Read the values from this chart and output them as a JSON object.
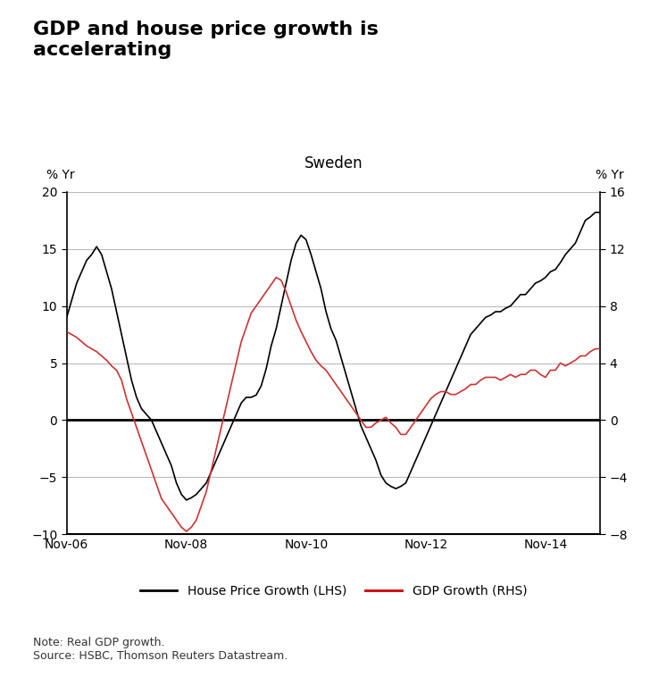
{
  "title": "GDP and house price growth is\naccelerating",
  "subtitle": "Sweden",
  "ylabel_left": "% Yr",
  "ylabel_right": "% Yr",
  "xlabel_ticks": [
    "Nov-06",
    "Nov-08",
    "Nov-10",
    "Nov-12",
    "Nov-14"
  ],
  "ylim_left": [
    -10,
    20
  ],
  "ylim_right": [
    -8,
    16
  ],
  "yticks_left": [
    -10,
    -5,
    0,
    5,
    10,
    15,
    20
  ],
  "yticks_right": [
    -8,
    -4,
    0,
    4,
    8,
    12,
    16
  ],
  "note": "Note: Real GDP growth.\nSource: HSBC, Thomson Reuters Datastream.",
  "legend_items": [
    "House Price Growth (LHS)",
    "GDP Growth (RHS)"
  ],
  "legend_colors": [
    "#000000",
    "#cc0000"
  ],
  "house_price": {
    "x": [
      0,
      1,
      2,
      3,
      4,
      5,
      6,
      7,
      8,
      9,
      10,
      11,
      12,
      13,
      14,
      15,
      16,
      17,
      18,
      19,
      20,
      21,
      22,
      23,
      24,
      25,
      26,
      27,
      28,
      29,
      30,
      31,
      32,
      33,
      34,
      35,
      36,
      37,
      38,
      39,
      40,
      41,
      42,
      43,
      44,
      45,
      46,
      47,
      48,
      49,
      50,
      51,
      52,
      53,
      54,
      55,
      56,
      57,
      58,
      59,
      60,
      61,
      62,
      63,
      64,
      65,
      66,
      67,
      68,
      69,
      70,
      71,
      72,
      73,
      74,
      75,
      76,
      77,
      78,
      79,
      80,
      81,
      82,
      83,
      84,
      85,
      86,
      87,
      88,
      89,
      90,
      91,
      92,
      93,
      94,
      95,
      96,
      97,
      98,
      99,
      100,
      101,
      102,
      103,
      104,
      105,
      106,
      107
    ],
    "values": [
      9.0,
      10.5,
      12.0,
      13.0,
      14.0,
      14.5,
      15.2,
      14.5,
      13.0,
      11.5,
      9.5,
      7.5,
      5.5,
      3.5,
      2.0,
      1.0,
      0.5,
      0.0,
      -1.0,
      -2.0,
      -3.0,
      -4.0,
      -5.5,
      -6.5,
      -7.0,
      -6.8,
      -6.5,
      -6.0,
      -5.5,
      -4.5,
      -3.5,
      -2.5,
      -1.5,
      -0.5,
      0.5,
      1.5,
      2.0,
      2.0,
      2.2,
      3.0,
      4.5,
      6.5,
      8.0,
      10.0,
      12.0,
      14.0,
      15.5,
      16.2,
      15.8,
      14.5,
      13.0,
      11.5,
      9.5,
      8.0,
      7.0,
      5.5,
      4.0,
      2.5,
      1.0,
      -0.5,
      -1.5,
      -2.5,
      -3.5,
      -4.8,
      -5.5,
      -5.8,
      -6.0,
      -5.8,
      -5.5,
      -4.5,
      -3.5,
      -2.5,
      -1.5,
      -0.5,
      0.5,
      1.5,
      2.5,
      3.5,
      4.5,
      5.5,
      6.5,
      7.5,
      8.0,
      8.5,
      9.0,
      9.2,
      9.5,
      9.5,
      9.8,
      10.0,
      10.5,
      11.0,
      11.0,
      11.5,
      12.0,
      12.2,
      12.5,
      13.0,
      13.2,
      13.8,
      14.5,
      15.0,
      15.5,
      16.5,
      17.5,
      17.8,
      18.2,
      18.2
    ]
  },
  "gdp_growth": {
    "x": [
      0,
      1,
      2,
      3,
      4,
      5,
      6,
      7,
      8,
      9,
      10,
      11,
      12,
      13,
      14,
      15,
      16,
      17,
      18,
      19,
      20,
      21,
      22,
      23,
      24,
      25,
      26,
      27,
      28,
      29,
      30,
      31,
      32,
      33,
      34,
      35,
      36,
      37,
      38,
      39,
      40,
      41,
      42,
      43,
      44,
      45,
      46,
      47,
      48,
      49,
      50,
      51,
      52,
      53,
      54,
      55,
      56,
      57,
      58,
      59,
      60,
      61,
      62,
      63,
      64,
      65,
      66,
      67,
      68,
      69,
      70,
      71,
      72,
      73,
      74,
      75,
      76,
      77,
      78,
      79,
      80,
      81,
      82,
      83,
      84,
      85,
      86,
      87,
      88,
      89,
      90,
      91,
      92,
      93,
      94,
      95,
      96,
      97,
      98,
      99,
      100,
      101,
      102,
      103,
      104,
      105,
      106,
      107
    ],
    "values": [
      6.2,
      6.0,
      5.8,
      5.5,
      5.2,
      5.0,
      4.8,
      4.5,
      4.2,
      3.8,
      3.5,
      2.8,
      1.5,
      0.5,
      -0.5,
      -1.5,
      -2.5,
      -3.5,
      -4.5,
      -5.5,
      -6.0,
      -6.5,
      -7.0,
      -7.5,
      -7.8,
      -7.5,
      -7.0,
      -6.0,
      -5.0,
      -3.5,
      -2.0,
      -0.5,
      1.0,
      2.5,
      4.0,
      5.5,
      6.5,
      7.5,
      8.0,
      8.5,
      9.0,
      9.5,
      10.0,
      9.8,
      9.0,
      8.0,
      7.0,
      6.2,
      5.5,
      4.8,
      4.2,
      3.8,
      3.5,
      3.0,
      2.5,
      2.0,
      1.5,
      1.0,
      0.5,
      0.0,
      -0.5,
      -0.5,
      -0.2,
      0.0,
      0.2,
      -0.2,
      -0.5,
      -1.0,
      -1.0,
      -0.5,
      0.0,
      0.5,
      1.0,
      1.5,
      1.8,
      2.0,
      2.0,
      1.8,
      1.8,
      2.0,
      2.2,
      2.5,
      2.5,
      2.8,
      3.0,
      3.0,
      3.0,
      2.8,
      3.0,
      3.2,
      3.0,
      3.2,
      3.2,
      3.5,
      3.5,
      3.2,
      3.0,
      3.5,
      3.5,
      4.0,
      3.8,
      4.0,
      4.2,
      4.5,
      4.5,
      4.8,
      5.0,
      5.0
    ]
  },
  "background_color": "#ffffff",
  "plot_background": "#ffffff",
  "grid_color": "#bbbbbb",
  "line_color_hp": "#000000",
  "line_color_gdp": "#cc3333",
  "zero_line_color": "#000000"
}
